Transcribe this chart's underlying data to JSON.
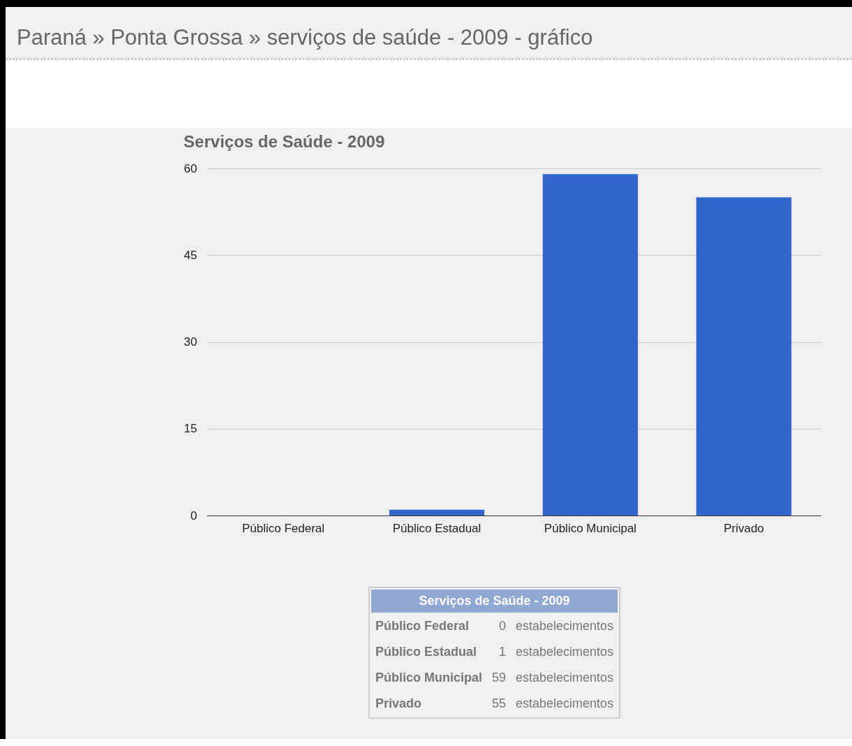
{
  "chart_data": [
    {
      "type": "bar",
      "title": "Serviços de Saúde - 2009",
      "annotations": [
        "Paraná » Ponta Grossa » serviços de saúde - 2009 - gráfico"
      ],
      "categories": [
        "Público Federal",
        "Público Estadual",
        "Público Municipal",
        "Privado"
      ],
      "values": [
        0,
        1,
        59,
        55
      ],
      "color": "#3366cc",
      "ylim": [
        0,
        60
      ],
      "yticks": [
        0,
        15,
        30,
        45,
        60
      ],
      "grid": "y",
      "legend": false
    },
    {
      "type": "other",
      "title": "Serviços de Saúde - 2009",
      "categories": [
        "Público Federal",
        "Público Estadual",
        "Público Municipal",
        "Privado"
      ],
      "values": [
        0,
        1,
        59,
        55
      ],
      "annotations": [
        "estabelecimentos"
      ],
      "data_labels": true
    }
  ]
}
